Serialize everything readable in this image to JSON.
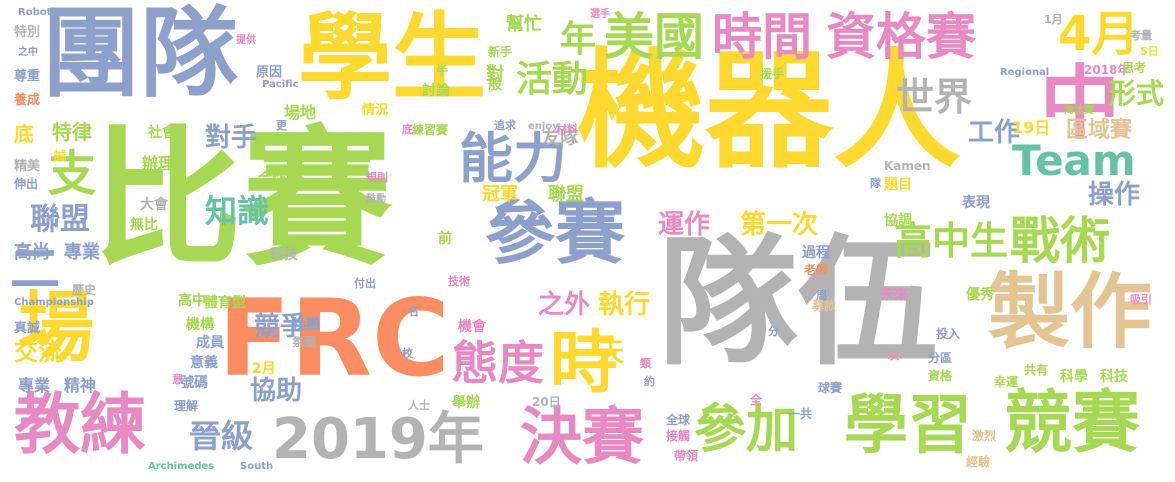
{
  "words": [
    {
      "text": "機器人",
      "color": "#ffd92f"
    },
    {
      "text": "比賽",
      "color": "#a6d854"
    },
    {
      "text": "隊伍",
      "color": "#b3b3b3"
    },
    {
      "text": "團隊",
      "color": "#8da0cb"
    },
    {
      "text": "學生",
      "color": "#ffd92f"
    },
    {
      "text": "FRC",
      "color": "#fc8d62"
    },
    {
      "text": "參賽",
      "color": "#8da0cb"
    },
    {
      "text": "製作",
      "color": "#e5c494"
    },
    {
      "text": "場",
      "color": "#ffd92f"
    },
    {
      "text": "中",
      "color": "#e78ac3"
    },
    {
      "text": "美國",
      "color": "#a6d854"
    },
    {
      "text": "時間",
      "color": "#e78ac3"
    },
    {
      "text": "資格賽",
      "color": "#e78ac3"
    },
    {
      "text": "4月",
      "color": "#ffd92f"
    },
    {
      "text": "能力",
      "color": "#8da0cb"
    },
    {
      "text": "時",
      "color": "#ffd92f"
    },
    {
      "text": "態度",
      "color": "#e78ac3"
    },
    {
      "text": "教練",
      "color": "#e78ac3"
    },
    {
      "text": "2019年",
      "color": "#b3b3b3"
    },
    {
      "text": "決賽",
      "color": "#e78ac3"
    },
    {
      "text": "參加",
      "color": "#a6d854"
    },
    {
      "text": "學習",
      "color": "#a6d854"
    },
    {
      "text": "競賽",
      "color": "#a6d854"
    },
    {
      "text": "戰術",
      "color": "#a6d854"
    },
    {
      "text": "高中生",
      "color": "#a6d854"
    },
    {
      "text": "Team",
      "color": "#66c2a5"
    },
    {
      "text": "世界",
      "color": "#b3b3b3"
    },
    {
      "text": "活動",
      "color": "#a6d854"
    },
    {
      "text": "年",
      "color": "#a6d854"
    },
    {
      "text": "支",
      "color": "#a6d854"
    },
    {
      "text": "聯盟",
      "color": "#8da0cb"
    },
    {
      "text": "二",
      "color": "#8da0cb"
    },
    {
      "text": "知識",
      "color": "#66c2a5"
    },
    {
      "text": "晉級",
      "color": "#8da0cb"
    },
    {
      "text": "對手",
      "color": "#8da0cb"
    },
    {
      "text": "運作",
      "color": "#e78ac3"
    },
    {
      "text": "第一次",
      "color": "#ffd92f"
    },
    {
      "text": "之外",
      "color": "#e78ac3"
    },
    {
      "text": "執行",
      "color": "#ffd92f"
    },
    {
      "text": "形式",
      "color": "#a6d854"
    },
    {
      "text": "區域賽",
      "color": "#e5c494"
    },
    {
      "text": "工作",
      "color": "#8da0cb"
    },
    {
      "text": "操作",
      "color": "#8da0cb"
    },
    {
      "text": "交流",
      "color": "#ffd92f"
    },
    {
      "text": "競爭",
      "color": "#8da0cb"
    },
    {
      "text": "協助",
      "color": "#8da0cb"
    },
    {
      "text": "天",
      "color": "#ffd92f"
    },
    {
      "text": "冠軍",
      "color": "#ffd92f"
    },
    {
      "text": "聯盟",
      "color": "#a6d854"
    },
    {
      "text": "特律",
      "color": "#a6d854"
    },
    {
      "text": "底",
      "color": "#ffd92f"
    },
    {
      "text": "友隊",
      "color": "#b3b3b3"
    },
    {
      "text": "19日",
      "color": "#ffd92f"
    },
    {
      "text": "高尚",
      "color": "#8da0cb"
    },
    {
      "text": "專業",
      "color": "#8da0cb"
    },
    {
      "text": "專業",
      "color": "#8da0cb"
    },
    {
      "text": "精神",
      "color": "#8da0cb"
    },
    {
      "text": "場地",
      "color": "#a6d854"
    },
    {
      "text": "對",
      "color": "#a6d854"
    },
    {
      "text": "討論",
      "color": "#a6d854"
    },
    {
      "text": "幫忙",
      "color": "#a6d854"
    },
    {
      "text": "辦理",
      "color": "#a6d854"
    },
    {
      "text": "社會",
      "color": "#a6d854"
    },
    {
      "text": "合作",
      "color": "#a6d854"
    },
    {
      "text": "大會",
      "color": "#b3b3b3"
    },
    {
      "text": "無比",
      "color": "#a6d854"
    },
    {
      "text": "科技",
      "color": "#b3b3b3"
    },
    {
      "text": "科學",
      "color": "#a6d854"
    },
    {
      "text": "科技",
      "color": "#a6d854"
    },
    {
      "text": "機構",
      "color": "#a6d854"
    },
    {
      "text": "成員",
      "color": "#8da0cb"
    },
    {
      "text": "社團",
      "color": "#8da0cb"
    },
    {
      "text": "氛圍",
      "color": "#b3b3b3"
    },
    {
      "text": "意義",
      "color": "#8da0cb"
    },
    {
      "text": "號碼",
      "color": "#8da0cb"
    },
    {
      "text": "2月",
      "color": "#ffd92f"
    },
    {
      "text": "理解",
      "color": "#8da0cb"
    },
    {
      "text": "舉辦",
      "color": "#a6d854"
    },
    {
      "text": "機會",
      "color": "#e78ac3"
    },
    {
      "text": "高中",
      "color": "#a6d854"
    },
    {
      "text": "體育型",
      "color": "#a6d854"
    },
    {
      "text": "過程",
      "color": "#8da0cb"
    },
    {
      "text": "老師",
      "color": "#fc8d62"
    },
    {
      "text": "表現",
      "color": "#8da0cb"
    },
    {
      "text": "協調",
      "color": "#a6d854"
    },
    {
      "text": "題目",
      "color": "#ffd92f"
    },
    {
      "text": "優秀",
      "color": "#a6d854"
    },
    {
      "text": "未來",
      "color": "#e78ac3"
    },
    {
      "text": "投入",
      "color": "#8da0cb"
    },
    {
      "text": "募款",
      "color": "#e5c494"
    },
    {
      "text": "球賽",
      "color": "#8da0cb"
    },
    {
      "text": "資格",
      "color": "#a6d854"
    },
    {
      "text": "分區",
      "color": "#8da0cb"
    },
    {
      "text": "幸運",
      "color": "#a6d854"
    },
    {
      "text": "共有",
      "color": "#a6d854"
    },
    {
      "text": "20日",
      "color": "#b3b3b3"
    },
    {
      "text": "一共",
      "color": "#8da0cb"
    },
    {
      "text": "全球",
      "color": "#8da0cb"
    },
    {
      "text": "接觸",
      "color": "#e78ac3"
    },
    {
      "text": "帶領",
      "color": "#e78ac3"
    },
    {
      "text": "激烈",
      "color": "#e5c494"
    },
    {
      "text": "經驗",
      "color": "#e5c494"
    },
    {
      "text": "特別",
      "color": "#b3b3b3"
    },
    {
      "text": "尊重",
      "color": "#8da0cb"
    },
    {
      "text": "養成",
      "color": "#fc8d62"
    },
    {
      "text": "精美",
      "color": "#b3b3b3"
    },
    {
      "text": "伸出",
      "color": "#8da0cb"
    },
    {
      "text": "誠",
      "color": "#ffd92f"
    },
    {
      "text": "真誠",
      "color": "#8da0cb"
    },
    {
      "text": "歷史",
      "color": "#b3b3b3"
    },
    {
      "text": "Championship",
      "color": "#8da0cb"
    },
    {
      "text": "Archimedes",
      "color": "#66c2a5"
    },
    {
      "text": "South",
      "color": "#8da0cb"
    },
    {
      "text": "Kamen",
      "color": "#b3b3b3"
    },
    {
      "text": "Regional",
      "color": "#8da0cb"
    },
    {
      "text": "Pacific",
      "color": "#8da0cb"
    },
    {
      "text": "Robotics",
      "color": "#8da0cb"
    },
    {
      "text": "enjoy",
      "color": "#b3b3b3"
    },
    {
      "text": "追求",
      "color": "#8da0cb"
    },
    {
      "text": "材料",
      "color": "#e78ac3"
    },
    {
      "text": "練習賽",
      "color": "#a6d854"
    },
    {
      "text": "原因",
      "color": "#8da0cb"
    },
    {
      "text": "情況",
      "color": "#ffd92f"
    },
    {
      "text": "新手",
      "color": "#a6d854"
    },
    {
      "text": "援手",
      "color": "#a6d854"
    },
    {
      "text": "淘汰賽",
      "color": "#a6d854"
    },
    {
      "text": "2018年",
      "color": "#e78ac3"
    },
    {
      "text": "思考",
      "color": "#a6d854"
    },
    {
      "text": "考量",
      "color": "#b3b3b3"
    },
    {
      "text": "5日",
      "color": "#ffd92f"
    },
    {
      "text": "之中",
      "color": "#8da0cb"
    },
    {
      "text": "1月",
      "color": "#b3b3b3"
    },
    {
      "text": "選手",
      "color": "#e78ac3"
    },
    {
      "text": "半",
      "color": "#a6d854"
    },
    {
      "text": "般",
      "color": "#a6d854"
    },
    {
      "text": "鼓勵",
      "color": "#b3b3b3"
    },
    {
      "text": "規則",
      "color": "#e78ac3"
    },
    {
      "text": "前",
      "color": "#a6d854"
    },
    {
      "text": "技術",
      "color": "#e78ac3"
    },
    {
      "text": "付出",
      "color": "#8da0cb"
    },
    {
      "text": "名",
      "color": "#8da0cb"
    },
    {
      "text": "校",
      "color": "#8da0cb"
    },
    {
      "text": "分",
      "color": "#8da0cb"
    },
    {
      "text": "周",
      "color": "#8da0cb"
    },
    {
      "text": "次",
      "color": "#e78ac3"
    },
    {
      "text": "類",
      "color": "#e78ac3"
    },
    {
      "text": "約",
      "color": "#8da0cb"
    },
    {
      "text": "全",
      "color": "#e78ac3"
    },
    {
      "text": "人士",
      "color": "#b3b3b3"
    },
    {
      "text": "隊",
      "color": "#8da0cb"
    },
    {
      "text": "更",
      "color": "#8da0cb"
    },
    {
      "text": "底",
      "color": "#e78ac3"
    },
    {
      "text": "吸引",
      "color": "#e78ac3"
    },
    {
      "text": "提供",
      "color": "#e78ac3"
    },
    {
      "text": "意",
      "color": "#e78ac3"
    }
  ]
}
